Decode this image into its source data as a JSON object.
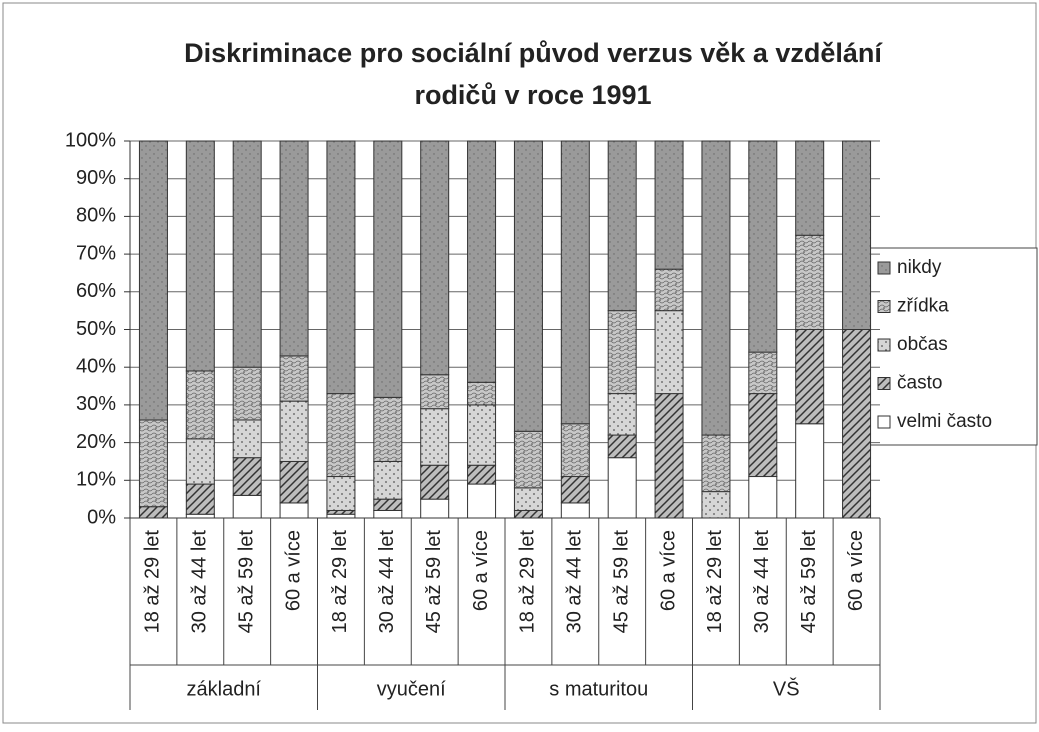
{
  "chart_data": {
    "type": "stacked_bar_100",
    "title": [
      "Diskriminace pro sociální původ verzus věk a vzdělání",
      "rodičů v roce 1991"
    ],
    "categories": [
      "18 až 29 let",
      "30 až 44 let",
      "45 až 59 let",
      "60 a více",
      "18 až 29 let",
      "30 až 44 let",
      "45 až 59 let",
      "60 a více",
      "18 až 29 let",
      "30 až 44 let",
      "45 až 59 let",
      "60 a více",
      "18 až 29 let",
      "30 až 44 let",
      "45 až 59 let",
      "60 a více"
    ],
    "groups": [
      "základní",
      "vyučení",
      "s maturitou",
      "VŠ"
    ],
    "series": [
      {
        "name": "velmi často",
        "color": "#ffffff",
        "values": [
          0,
          1,
          6,
          4,
          1,
          2,
          5,
          9,
          0,
          4,
          16,
          0,
          0,
          11,
          25,
          0
        ]
      },
      {
        "name": "často",
        "color": "#bdbdbd",
        "values": [
          3,
          8,
          10,
          11,
          1,
          3,
          9,
          5,
          2,
          7,
          6,
          33,
          0,
          22,
          25,
          50
        ]
      },
      {
        "name": "občas",
        "color": "#d6d6d6",
        "values": [
          0,
          12,
          10,
          16,
          9,
          10,
          15,
          16,
          6,
          0,
          11,
          22,
          7,
          0,
          0,
          0
        ]
      },
      {
        "name": "zřídka",
        "color": "#c8c8c8",
        "values": [
          23,
          18,
          14,
          12,
          22,
          17,
          9,
          6,
          15,
          14,
          22,
          11,
          15,
          11,
          25,
          0
        ]
      },
      {
        "name": "nikdy",
        "color": "#9a9a9a",
        "values": [
          74,
          61,
          60,
          57,
          67,
          68,
          62,
          64,
          77,
          75,
          45,
          34,
          78,
          56,
          25,
          50
        ]
      }
    ],
    "ylim": [
      0,
      100
    ],
    "yticks": [
      {
        "value": 0,
        "label": "0%"
      },
      {
        "value": 10,
        "label": "10%"
      },
      {
        "value": 20,
        "label": "20%"
      },
      {
        "value": 30,
        "label": "30%"
      },
      {
        "value": 40,
        "label": "40%"
      },
      {
        "value": 50,
        "label": "50%"
      },
      {
        "value": 60,
        "label": "60%"
      },
      {
        "value": 70,
        "label": "70%"
      },
      {
        "value": 80,
        "label": "80%"
      },
      {
        "value": 90,
        "label": "90%"
      },
      {
        "value": 100,
        "label": "100%"
      }
    ],
    "grid": true,
    "legend": "right"
  }
}
